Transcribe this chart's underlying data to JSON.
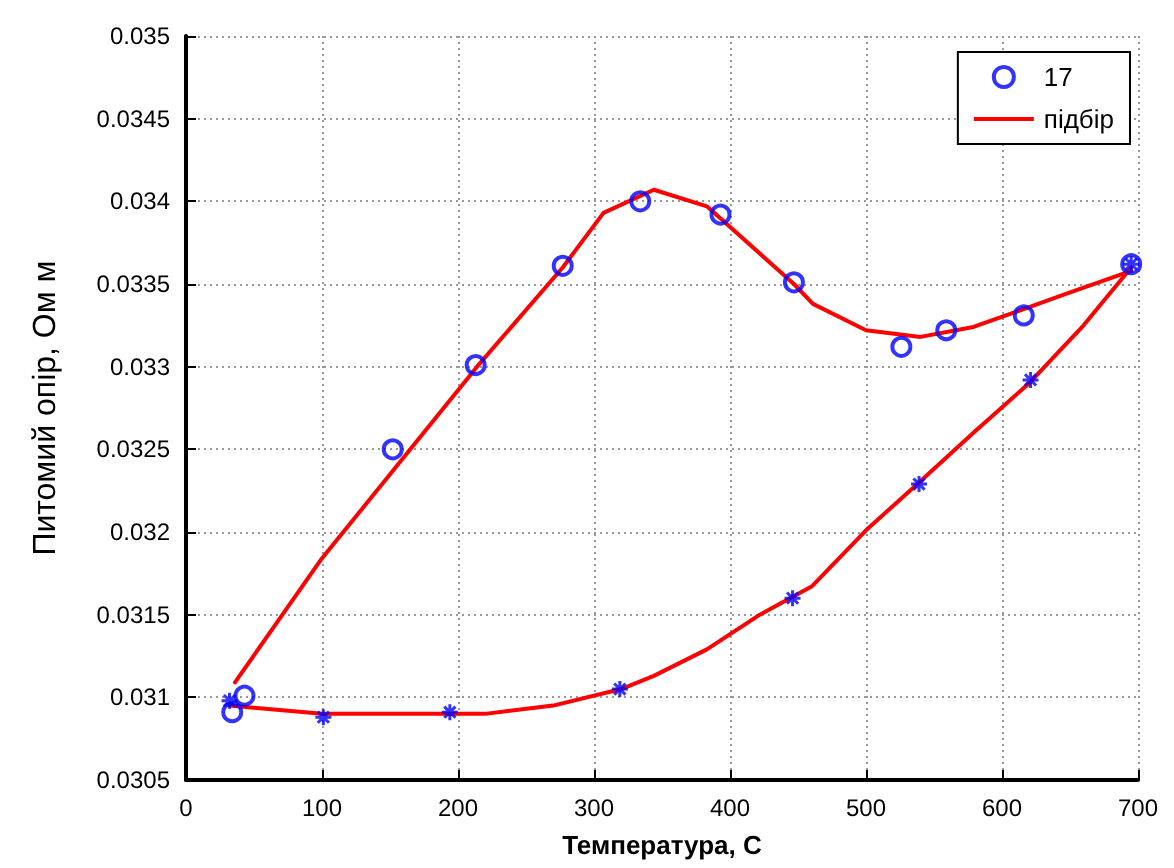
{
  "chart_data": {
    "type": "scatter",
    "xlabel": "Температура, С",
    "ylabel": "Питомий опір, Ом м",
    "xlim": [
      0,
      700
    ],
    "xticks": [
      0,
      100,
      200,
      300,
      400,
      500,
      600,
      700
    ],
    "ylim": [
      0.0305,
      0.035
    ],
    "yticks": [
      0.0305,
      0.031,
      0.0315,
      0.032,
      0.0325,
      0.033,
      0.0335,
      0.034,
      0.0345,
      0.035
    ],
    "grid": true,
    "legend": "top right",
    "series": [
      {
        "name": "17",
        "marker": "circle",
        "color": "#0000ff",
        "x": [
          34,
          43,
          152,
          213,
          277,
          334,
          393,
          447,
          526,
          559,
          616,
          695
        ],
        "values": [
          0.03091,
          0.03101,
          0.0325,
          0.03301,
          0.03361,
          0.034,
          0.03392,
          0.03351,
          0.03312,
          0.03322,
          0.03331,
          0.03362
        ]
      },
      {
        "marker": "cross",
        "color": "#0000ff",
        "x": [
          32,
          101,
          194,
          319,
          446,
          539,
          621,
          695
        ],
        "values": [
          0.03098,
          0.03088,
          0.03091,
          0.03105,
          0.0316,
          0.03229,
          0.03292,
          0.03362
        ]
      },
      {
        "name": "підбір",
        "type": "line",
        "marker": "none",
        "line_style": "solid",
        "color": "#ff0000",
        "x": [
          36,
          99,
          214,
          277,
          307,
          344,
          383,
          447,
          461,
          500,
          540,
          579,
          647,
          695
        ],
        "values": [
          0.03109,
          0.03183,
          0.033,
          0.0336,
          0.03393,
          0.03407,
          0.03397,
          0.0335,
          0.03338,
          0.03322,
          0.03318,
          0.03324,
          0.03344,
          0.03358
        ]
      },
      {
        "type": "line",
        "marker": "none",
        "line_style": "solid",
        "color": "#ff0000",
        "x": [
          32,
          100,
          170,
          220,
          270,
          320,
          344,
          383,
          422,
          460,
          500,
          539,
          579,
          620,
          660,
          695
        ],
        "values": [
          0.03095,
          0.0309,
          0.0309,
          0.0309,
          0.03095,
          0.03105,
          0.03113,
          0.03129,
          0.0315,
          0.03167,
          0.03201,
          0.0323,
          0.0326,
          0.0329,
          0.03325,
          0.0336
        ]
      }
    ]
  }
}
